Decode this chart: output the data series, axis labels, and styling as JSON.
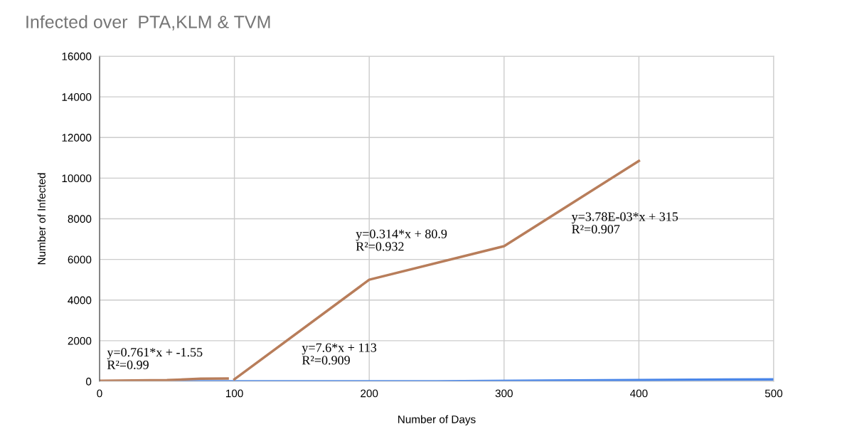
{
  "chart_data": {
    "type": "line",
    "title": "Infected over  PTA,KLM & TVM",
    "xlabel": "Number of Days",
    "ylabel": "Number of Infected",
    "xlim": [
      0,
      500
    ],
    "xticks": [
      0,
      100,
      200,
      300,
      400,
      500
    ],
    "ylim": [
      0,
      16000
    ],
    "yticks": [
      0,
      2000,
      4000,
      6000,
      8000,
      10000,
      12000,
      14000,
      16000
    ],
    "grid": true,
    "marker": "none",
    "line_style": "solid",
    "series": [
      {
        "color": "#4a86e8",
        "x": [
          0,
          250,
          500
        ],
        "values": [
          0,
          0,
          100
        ]
      },
      {
        "color": "#b87d5a",
        "x": [
          0,
          25,
          50,
          75,
          95
        ],
        "values": [
          30,
          40,
          60,
          130,
          140
        ]
      },
      {
        "color": "#b87d5a",
        "x": [
          100,
          200,
          300,
          400
        ],
        "values": [
          100,
          5000,
          6650,
          10850
        ]
      }
    ],
    "annotations": [
      "y=0.761*x + -1.55\nR²=0.99",
      "y=7.6*x + 113\nR²=0.909",
      "y=0.314*x + 80.9\nR²=0.932",
      "y=3.78E-03*x + 315\nR²=0.907"
    ]
  }
}
